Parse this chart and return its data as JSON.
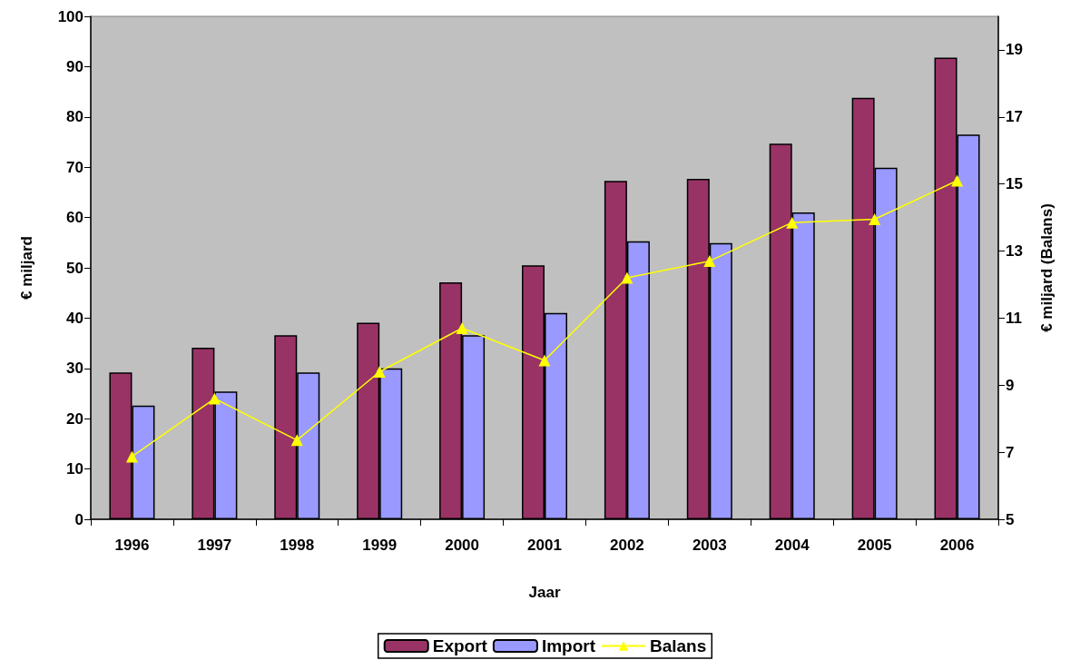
{
  "chart_data": {
    "type": "bar",
    "xlabel": "Jaar",
    "ylabel": "€ miljard",
    "y2label": "€ miljard (Balans)",
    "categories": [
      "1996",
      "1997",
      "1998",
      "1999",
      "2000",
      "2001",
      "2002",
      "2003",
      "2004",
      "2005",
      "2006"
    ],
    "series": [
      {
        "name": "Export",
        "color": "#993366",
        "values": [
          29.2,
          34.1,
          36.6,
          39.1,
          47.1,
          50.5,
          67.3,
          67.7,
          74.7,
          83.8,
          91.8
        ]
      },
      {
        "name": "Import",
        "color": "#9999ff",
        "values": [
          22.6,
          25.4,
          29.2,
          30.0,
          36.6,
          41.0,
          55.3,
          54.9,
          61.0,
          69.9,
          76.5
        ]
      },
      {
        "name": "Balans",
        "type": "line",
        "axis": "y2",
        "color": "#ffff00",
        "marker": "triangle",
        "values": [
          6.87,
          8.6,
          7.36,
          9.4,
          10.7,
          9.74,
          12.2,
          12.7,
          13.85,
          13.95,
          15.1
        ]
      }
    ],
    "ylim": [
      0,
      100
    ],
    "yticks": [
      0,
      10,
      20,
      30,
      40,
      50,
      60,
      70,
      80,
      90,
      100
    ],
    "y2lim": [
      5,
      20
    ],
    "y2ticks": [
      5,
      7,
      9,
      11,
      13,
      15,
      17,
      19
    ],
    "grid": false,
    "legend": "bottom"
  }
}
